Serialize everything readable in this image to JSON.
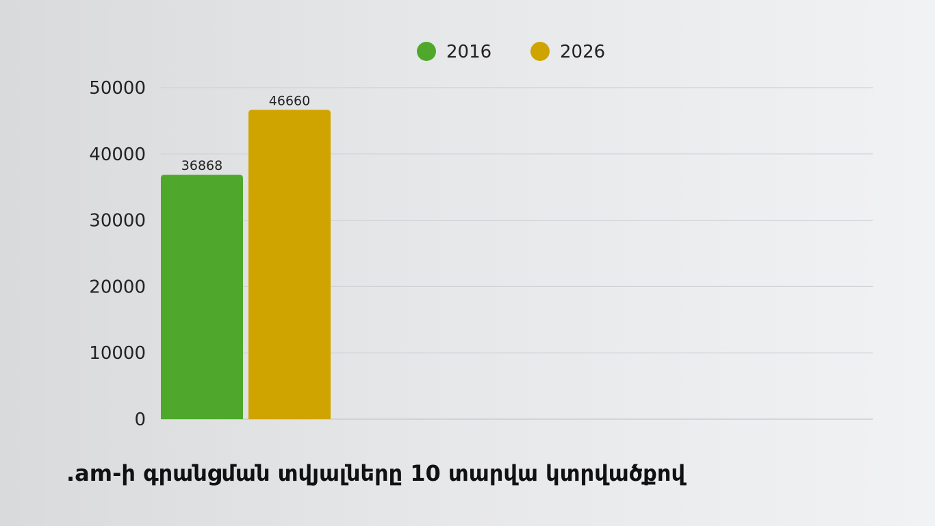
{
  "chart_data": {
    "type": "bar",
    "title": ".am-ի գրանցման տվյալները 10 տարվա կտրվածքով",
    "xlabel": "",
    "ylabel": "",
    "ylim": [
      0,
      50000
    ],
    "y_ticks": [
      "0",
      "10000",
      "20000",
      "30000",
      "40000",
      "50000"
    ],
    "grid": true,
    "legend_position": "top-center",
    "categories": [
      ""
    ],
    "series": [
      {
        "name": "2016",
        "values": [
          36868
        ],
        "color": "#4fa82c"
      },
      {
        "name": "2026",
        "values": [
          46660
        ],
        "color": "#cfa400"
      }
    ]
  }
}
